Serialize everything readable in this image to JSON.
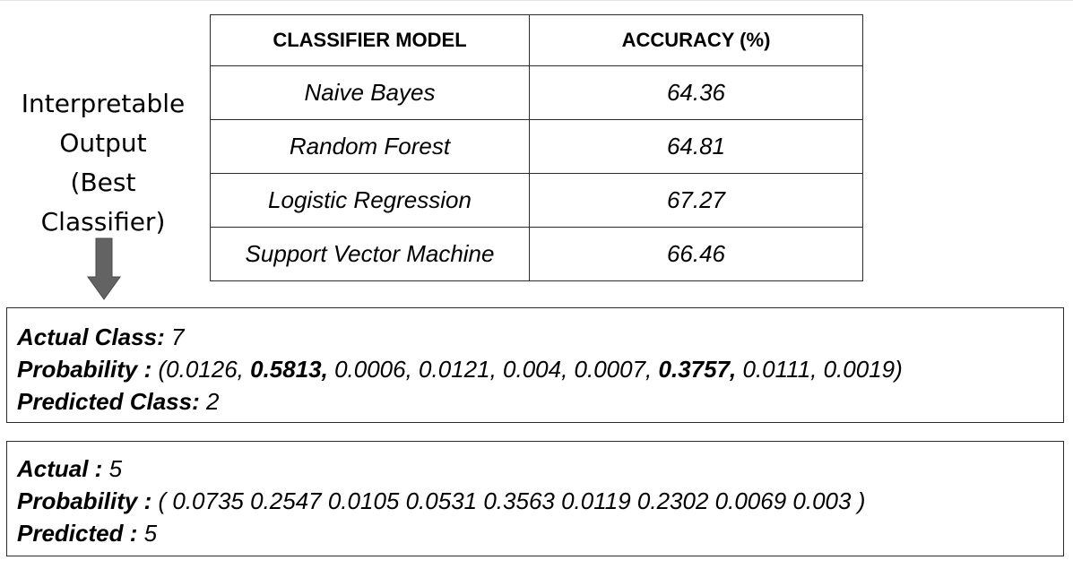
{
  "side_label": {
    "lines": [
      "Interpretable",
      "Output",
      "(Best",
      "Classifier)"
    ]
  },
  "arrow": {
    "icon": "down-arrow-icon",
    "color": "#636363"
  },
  "table": {
    "headers": [
      "CLASSIFIER MODEL",
      "ACCURACY (%)"
    ],
    "rows": [
      [
        "Naive Bayes",
        "64.36"
      ],
      [
        "Random Forest",
        "64.81"
      ],
      [
        "Logistic Regression",
        "67.27"
      ],
      [
        "Support Vector Machine",
        "66.46"
      ]
    ]
  },
  "example1": {
    "actual_label": "Actual Class:",
    "actual_value": " 7",
    "prob_label": "Probability :",
    "prob_open": " (0.0126, ",
    "prob_bold1": "0.5813,",
    "prob_mid": " 0.0006, 0.0121, 0.004, 0.0007, ",
    "prob_bold2": "0.3757,",
    "prob_close": " 0.0111, 0.0019)",
    "pred_label": "Predicted Class:",
    "pred_value": " 2"
  },
  "example2": {
    "actual_label": "Actual :",
    "actual_value": " 5",
    "prob_label": "Probability :",
    "prob_values": " ( 0.0735 0.2547 0.0105 0.0531 0.3563 0.0119 0.2302 0.0069 0.003 )",
    "pred_label": "Predicted :",
    "pred_value": " 5"
  }
}
